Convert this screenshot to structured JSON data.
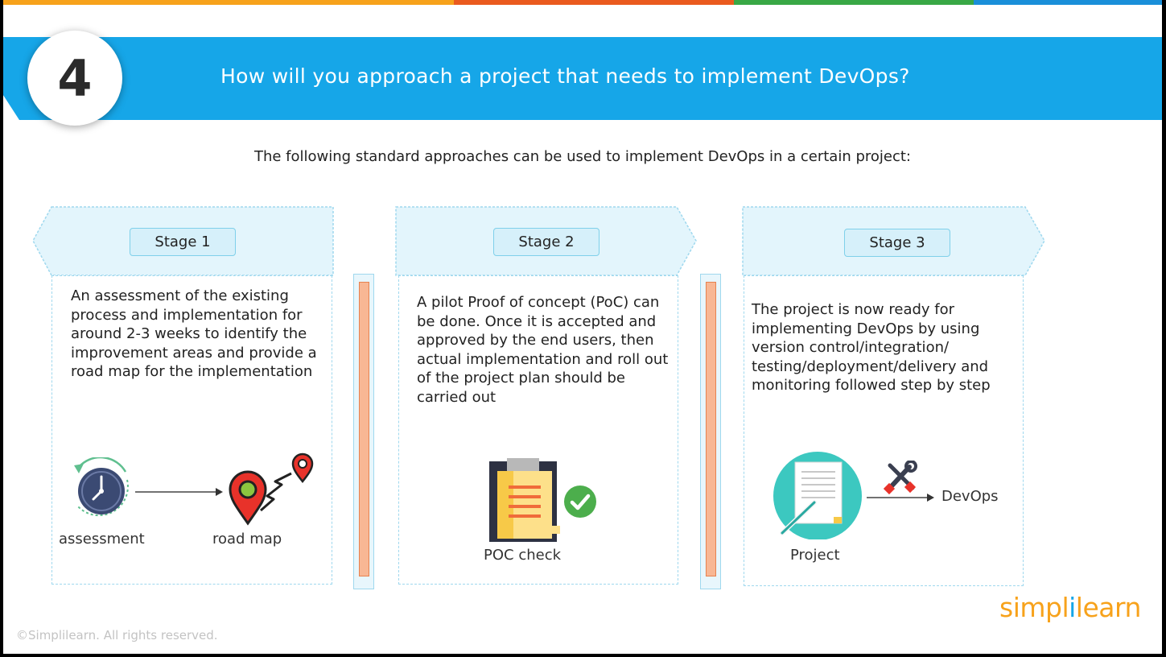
{
  "question_number": "4",
  "title": "How will you approach a project that needs to implement DevOps?",
  "intro": "The following standard approaches can be used to implement DevOps in a certain project:",
  "colors": {
    "banner": "#16a6e8",
    "stripe_orange": "#f7a21b",
    "stripe_red": "#ea5a1e",
    "stripe_green": "#39a845",
    "stripe_blue": "#1a8fd9",
    "divider_fill": "#f8b794"
  },
  "stages": [
    {
      "label": "Stage 1",
      "text": "An assessment of the existing process and implementation for around 2-3 weeks to identify the improvement areas and provide a road map for the implementation",
      "icons": [
        "clock-icon",
        "map-pin-icon"
      ],
      "captions": [
        "assessment",
        "road map"
      ]
    },
    {
      "label": "Stage 2",
      "text": "A pilot Proof of concept (PoC) can be done. Once it is accepted and approved by the end users, then actual implementation and roll out of the project plan should be carried out",
      "icons": [
        "clipboard-icon",
        "checkmark-icon"
      ],
      "captions": [
        "POC check"
      ]
    },
    {
      "label": "Stage 3",
      "text": "The project is now ready for implementing DevOps by using version control/integration/ testing/deployment/delivery and monitoring followed step by step",
      "icons": [
        "document-icon",
        "tools-icon"
      ],
      "captions": [
        "Project",
        "DevOps"
      ]
    }
  ],
  "footer": {
    "copyright": "©Simplilearn. All rights reserved.",
    "logo_left": "simpl",
    "logo_mid": "i",
    "logo_right": "learn"
  }
}
